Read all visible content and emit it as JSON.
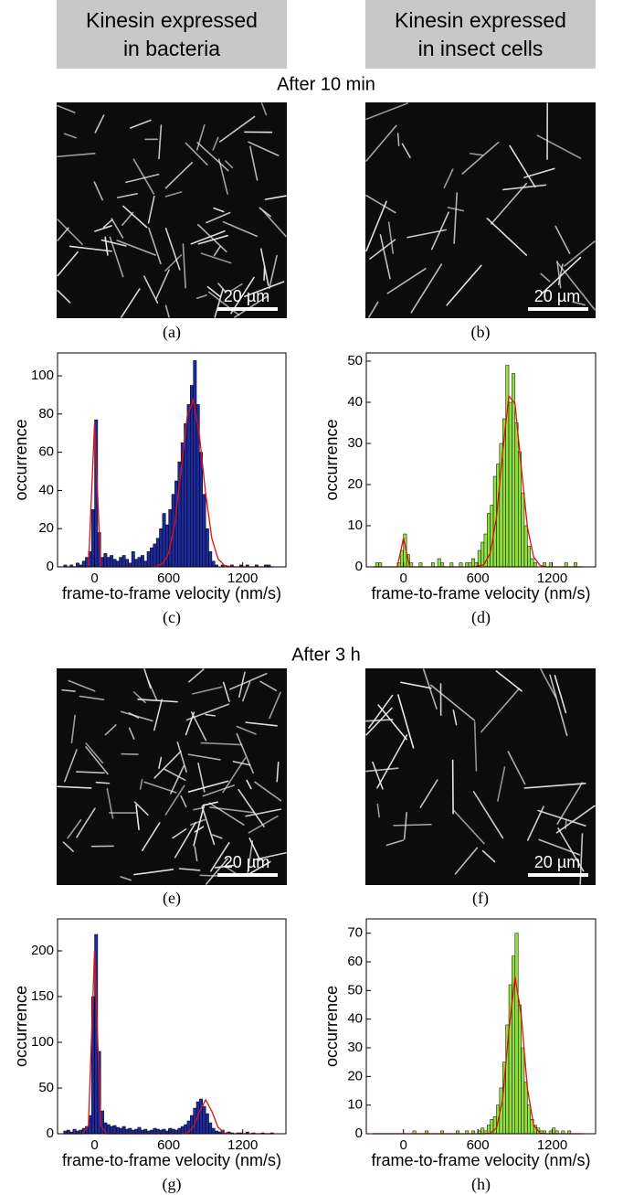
{
  "headers": [
    [
      "Kinesin expressed",
      "in bacteria"
    ],
    [
      "Kinesin expressed",
      "in insect cells"
    ]
  ],
  "sections": [
    "After 10 min",
    "After 3 h"
  ],
  "images": [
    {
      "label": "(a)",
      "scale_bar": "20 µm"
    },
    {
      "label": "(b)",
      "scale_bar": "20 µm"
    },
    {
      "label": "(e)",
      "scale_bar": "20 µm"
    },
    {
      "label": "(f)",
      "scale_bar": "20 µm"
    }
  ],
  "chart_data": [
    {
      "type": "histogram",
      "label": "(c)",
      "xlabel": "frame-to-frame velocity (nm/s)",
      "ylabel": "occurrence",
      "color": "#1c2a9c",
      "bins": [
        -250,
        -225,
        -200,
        -175,
        -150,
        -125,
        -100,
        -75,
        -50,
        -25,
        0,
        25,
        50,
        75,
        100,
        125,
        150,
        175,
        200,
        225,
        250,
        275,
        300,
        325,
        350,
        375,
        400,
        425,
        450,
        475,
        500,
        525,
        550,
        575,
        600,
        625,
        650,
        675,
        700,
        725,
        750,
        775,
        800,
        825,
        850,
        875,
        900,
        925,
        950,
        975,
        1000,
        1025,
        1050,
        1075,
        1100,
        1125,
        1150,
        1175,
        1200,
        1225,
        1250,
        1275,
        1300,
        1325,
        1350,
        1375,
        1400,
        1425,
        1450
      ],
      "counts": [
        1,
        0,
        1,
        0,
        2,
        1,
        3,
        5,
        8,
        30,
        77,
        18,
        5,
        7,
        5,
        6,
        4,
        3,
        5,
        6,
        4,
        2,
        8,
        4,
        5,
        6,
        3,
        8,
        10,
        12,
        15,
        20,
        28,
        22,
        30,
        38,
        45,
        55,
        65,
        75,
        85,
        95,
        108,
        85,
        60,
        38,
        20,
        8,
        3,
        1,
        0,
        1,
        0,
        0,
        1,
        0,
        0,
        1,
        0,
        1,
        0,
        0,
        1,
        0,
        0,
        1,
        1,
        0
      ],
      "fit": {
        "color": "#e01010",
        "x": [
          -250,
          -200,
          -150,
          -100,
          -50,
          0,
          50,
          100,
          150,
          200,
          250,
          300,
          350,
          400,
          450,
          500,
          550,
          600,
          650,
          700,
          750,
          800,
          850,
          900,
          950,
          1000,
          1050,
          1100,
          1150,
          1200,
          1250,
          1300,
          1350,
          1400,
          1450
        ],
        "values": [
          0,
          0,
          0,
          0,
          0,
          75,
          0,
          0,
          0,
          0,
          0,
          0,
          0,
          0,
          0,
          0.3,
          1.6,
          7.2,
          22.7,
          50.2,
          78.8,
          87.4,
          68.6,
          38.1,
          15,
          4.2,
          0.8,
          0.1,
          0,
          0,
          0,
          0,
          0,
          0,
          0
        ]
      },
      "xlim": [
        -300,
        1550
      ],
      "xticks": [
        0,
        600,
        1200
      ],
      "ylim": [
        0,
        112
      ],
      "yticks": [
        0,
        20,
        40,
        60,
        80,
        100
      ]
    },
    {
      "type": "histogram",
      "label": "(d)",
      "xlabel": "frame-to-frame velocity (nm/s)",
      "ylabel": "occurrence",
      "color": "#90e040",
      "bins": [
        -250,
        -225,
        -200,
        -175,
        -150,
        -125,
        -100,
        -75,
        -50,
        -25,
        0,
        25,
        50,
        75,
        100,
        125,
        150,
        175,
        200,
        225,
        250,
        275,
        300,
        325,
        350,
        375,
        400,
        425,
        450,
        475,
        500,
        525,
        550,
        575,
        600,
        625,
        650,
        675,
        700,
        725,
        750,
        775,
        800,
        825,
        850,
        875,
        900,
        925,
        950,
        975,
        1000,
        1025,
        1050,
        1075,
        1100,
        1125,
        1150,
        1175,
        1200,
        1225,
        1250,
        1275,
        1300,
        1325,
        1350,
        1375,
        1400,
        1425,
        1450
      ],
      "counts": [
        0,
        1,
        1,
        0,
        0,
        0,
        0,
        0,
        1,
        4,
        8,
        3,
        1,
        0,
        0,
        1,
        0,
        0,
        0,
        1,
        0,
        2,
        1,
        0,
        0,
        1,
        0,
        0,
        1,
        0,
        1,
        1,
        2,
        1,
        4,
        6,
        8,
        13,
        15,
        22,
        25,
        30,
        36,
        49,
        40,
        47,
        35,
        28,
        18,
        10,
        5,
        2,
        1,
        0,
        0,
        1,
        0,
        1,
        0,
        0,
        0,
        0,
        1,
        0,
        0,
        1,
        0,
        0
      ],
      "fit": {
        "color": "#e01010",
        "x": [
          -250,
          -200,
          -150,
          -100,
          -50,
          0,
          50,
          100,
          150,
          200,
          250,
          300,
          350,
          400,
          450,
          500,
          550,
          600,
          650,
          700,
          750,
          800,
          850,
          900,
          950,
          1000,
          1050,
          1100,
          1150,
          1200,
          1250,
          1300,
          1350,
          1400,
          1450
        ],
        "values": [
          0,
          0,
          0,
          0,
          0,
          7,
          0,
          0,
          0,
          0,
          0,
          0,
          0,
          0,
          0,
          0,
          0,
          0.1,
          0.6,
          3.3,
          12,
          27.8,
          41.5,
          39.7,
          24.3,
          9.6,
          2.4,
          0.4,
          0,
          0,
          0,
          0,
          0,
          0,
          0
        ]
      },
      "xlim": [
        -300,
        1550
      ],
      "xticks": [
        0,
        600,
        1200
      ],
      "ylim": [
        0,
        52
      ],
      "yticks": [
        0,
        10,
        20,
        30,
        40,
        50
      ]
    },
    {
      "type": "histogram",
      "label": "(g)",
      "xlabel": "frame-to-frame velocity (nm/s)",
      "ylabel": "occurrence",
      "color": "#1c2a9c",
      "bins": [
        -250,
        -225,
        -200,
        -175,
        -150,
        -125,
        -100,
        -75,
        -50,
        -25,
        0,
        25,
        50,
        75,
        100,
        125,
        150,
        175,
        200,
        225,
        250,
        275,
        300,
        325,
        350,
        375,
        400,
        425,
        450,
        475,
        500,
        525,
        550,
        575,
        600,
        625,
        650,
        675,
        700,
        725,
        750,
        775,
        800,
        825,
        850,
        875,
        900,
        925,
        950,
        975,
        1000,
        1025,
        1050,
        1075,
        1100,
        1125,
        1150,
        1175,
        1200,
        1225,
        1250,
        1275,
        1300,
        1325,
        1350,
        1375,
        1400,
        1425,
        1450
      ],
      "counts": [
        3,
        4,
        2,
        5,
        3,
        4,
        6,
        8,
        20,
        150,
        218,
        90,
        25,
        12,
        10,
        8,
        9,
        7,
        6,
        8,
        5,
        6,
        4,
        5,
        7,
        4,
        5,
        3,
        4,
        6,
        5,
        4,
        5,
        3,
        6,
        5,
        4,
        6,
        8,
        10,
        14,
        20,
        28,
        35,
        38,
        30,
        22,
        12,
        6,
        3,
        2,
        4,
        1,
        2,
        1,
        0,
        1,
        1,
        0,
        2,
        0,
        1,
        0,
        0,
        1,
        0,
        0,
        1
      ],
      "fit": {
        "color": "#e01010",
        "x": [
          -250,
          -200,
          -150,
          -100,
          -50,
          0,
          50,
          100,
          150,
          200,
          250,
          300,
          350,
          400,
          450,
          500,
          550,
          600,
          650,
          700,
          750,
          800,
          850,
          900,
          950,
          1000,
          1050,
          1100,
          1150,
          1200,
          1250,
          1300,
          1350,
          1400,
          1450
        ],
        "values": [
          0,
          0,
          0,
          0,
          8.8,
          200,
          8.8,
          0,
          0,
          0,
          0,
          0,
          0,
          0,
          0,
          0,
          0,
          0,
          0,
          0,
          0.9,
          7.1,
          24.5,
          37,
          24.5,
          7.1,
          0.9,
          0,
          0,
          0,
          0,
          0,
          0,
          0,
          0
        ]
      },
      "xlim": [
        -300,
        1550
      ],
      "xticks": [
        0,
        600,
        1200
      ],
      "ylim": [
        0,
        235
      ],
      "yticks": [
        0,
        50,
        100,
        150,
        200
      ]
    },
    {
      "type": "histogram",
      "label": "(h)",
      "xlabel": "frame-to-frame velocity (nm/s)",
      "ylabel": "occurrence",
      "color": "#90e040",
      "bins": [
        -250,
        -225,
        -200,
        -175,
        -150,
        -125,
        -100,
        -75,
        -50,
        -25,
        0,
        25,
        50,
        75,
        100,
        125,
        150,
        175,
        200,
        225,
        250,
        275,
        300,
        325,
        350,
        375,
        400,
        425,
        450,
        475,
        500,
        525,
        550,
        575,
        600,
        625,
        650,
        675,
        700,
        725,
        750,
        775,
        800,
        825,
        850,
        875,
        900,
        925,
        950,
        975,
        1000,
        1025,
        1050,
        1075,
        1100,
        1125,
        1150,
        1175,
        1200,
        1225,
        1250,
        1275,
        1300,
        1325,
        1350,
        1375,
        1400,
        1425,
        1450
      ],
      "counts": [
        0,
        0,
        0,
        0,
        0,
        0,
        0,
        0,
        0,
        0,
        0,
        0,
        0,
        1,
        0,
        0,
        0,
        1,
        0,
        0,
        0,
        0,
        1,
        0,
        0,
        0,
        0,
        1,
        0,
        0,
        1,
        0,
        1,
        0,
        1,
        2,
        1,
        3,
        5,
        6,
        10,
        16,
        25,
        38,
        52,
        62,
        70,
        45,
        30,
        18,
        10,
        5,
        3,
        2,
        1,
        1,
        0,
        1,
        2,
        1,
        0,
        1,
        0,
        1,
        0,
        0,
        0,
        0
      ],
      "fit": {
        "color": "#e01010",
        "x": [
          -250,
          -200,
          -150,
          -100,
          -50,
          0,
          50,
          100,
          150,
          200,
          250,
          300,
          350,
          400,
          450,
          500,
          550,
          600,
          650,
          700,
          750,
          800,
          850,
          900,
          950,
          1000,
          1050,
          1100,
          1150,
          1200,
          1250,
          1300,
          1350,
          1400,
          1450
        ],
        "values": [
          0,
          0,
          0,
          0,
          0,
          0,
          0,
          0,
          0,
          0,
          0,
          0,
          0,
          0,
          0,
          0,
          0,
          0,
          0,
          0.2,
          2,
          11.9,
          36.1,
          54.8,
          41.5,
          15.7,
          3,
          0.3,
          0,
          0,
          0,
          0,
          0,
          0,
          0
        ]
      },
      "xlim": [
        -300,
        1550
      ],
      "xticks": [
        0,
        600,
        1200
      ],
      "ylim": [
        0,
        75
      ],
      "yticks": [
        0,
        10,
        20,
        30,
        40,
        50,
        60,
        70
      ]
    }
  ]
}
